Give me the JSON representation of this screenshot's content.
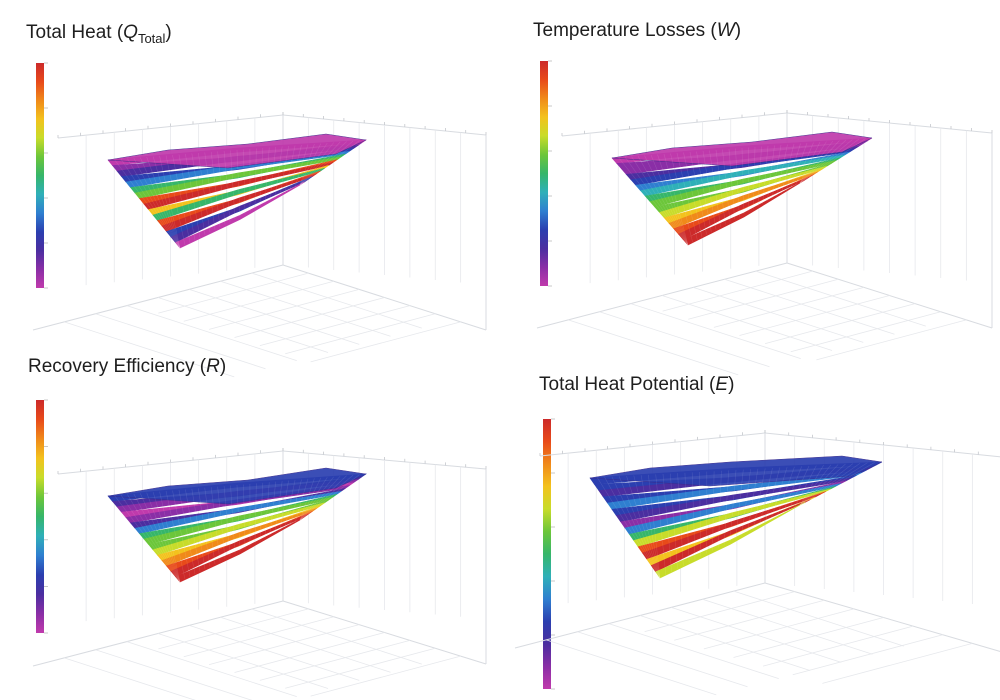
{
  "colors": {
    "scale": [
      "#cc2a2a",
      "#e84a1a",
      "#f08a1a",
      "#f3c21d",
      "#c8dc2a",
      "#6cc63a",
      "#36b66a",
      "#2fb0b8",
      "#2f7fd0",
      "#2b3fb0",
      "#4b2ea0",
      "#8a2ea6",
      "#c03aac"
    ],
    "box": "#d8dbe0",
    "grid": "#e6e8ec"
  },
  "panels": [
    {
      "title": "Total Heat (",
      "symbol": "Q",
      "subscript": "Total",
      "suffix": ")",
      "colormap_name": "colorbar-gradient"
    },
    {
      "title": "Temperature Losses (",
      "symbol": "W",
      "subscript": "",
      "suffix": ")",
      "colormap_name": "colorbar-gradient"
    },
    {
      "title": "Recovery Efficiency (",
      "symbol": "R",
      "subscript": "",
      "suffix": ")",
      "colormap_name": "colorbar-gradient"
    },
    {
      "title": "Total Heat Potential (",
      "symbol": "E",
      "subscript": "",
      "suffix": ")",
      "colormap_name": "colorbar-gradient"
    }
  ]
}
